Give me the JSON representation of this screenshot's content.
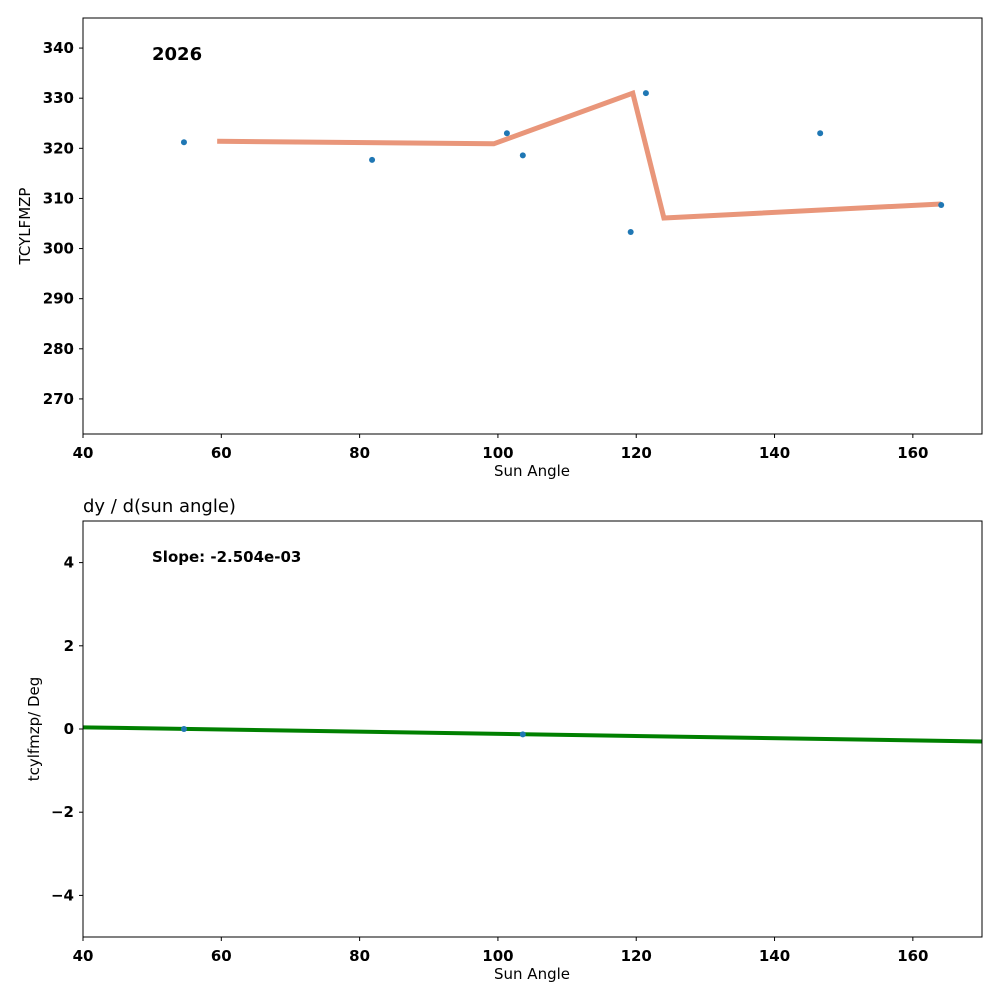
{
  "chart_data": [
    {
      "type": "line",
      "title": "",
      "annotation": "2026",
      "xlabel": "Sun Angle",
      "ylabel": "TCYLFMZP",
      "xlim": [
        40,
        170
      ],
      "ylim": [
        263,
        346
      ],
      "xticks": [
        40,
        60,
        80,
        100,
        120,
        140,
        160
      ],
      "yticks": [
        270,
        280,
        290,
        300,
        310,
        320,
        330,
        340
      ],
      "grid": false,
      "colors": {
        "points": "#1f77b4",
        "fit": "#e9967a"
      },
      "series": [
        {
          "name": "observations",
          "kind": "scatter",
          "x": [
            54.6,
            81.8,
            101.3,
            103.6,
            119.2,
            121.4,
            146.6,
            164.1
          ],
          "y": [
            321.2,
            317.7,
            323.0,
            318.6,
            303.3,
            331.0,
            323.0,
            308.7
          ]
        },
        {
          "name": "piecewise fit",
          "kind": "line",
          "x": [
            59.4,
            99.4,
            119.5,
            124.0,
            164.1
          ],
          "y": [
            321.4,
            320.9,
            331.0,
            306.1,
            308.9
          ]
        }
      ]
    },
    {
      "type": "line",
      "title": "dy / d(sun angle)",
      "annotation": "Slope: -2.504e-03",
      "xlabel": "Sun Angle",
      "ylabel": "tcylfmzp/ Deg",
      "xlim": [
        40,
        170
      ],
      "ylim": [
        -5,
        5
      ],
      "xticks": [
        40,
        60,
        80,
        100,
        120,
        140,
        160
      ],
      "yticks": [
        -4,
        -2,
        0,
        2,
        4
      ],
      "grid": false,
      "colors": {
        "points": "#1f77b4",
        "fit": "#008000"
      },
      "series": [
        {
          "name": "derivative points",
          "kind": "scatter",
          "x": [
            54.6,
            103.6
          ],
          "y": [
            0.0,
            -0.13
          ]
        },
        {
          "name": "linear fit",
          "kind": "line",
          "x": [
            40,
            170
          ],
          "y": [
            0.04,
            -0.3
          ]
        }
      ]
    }
  ]
}
